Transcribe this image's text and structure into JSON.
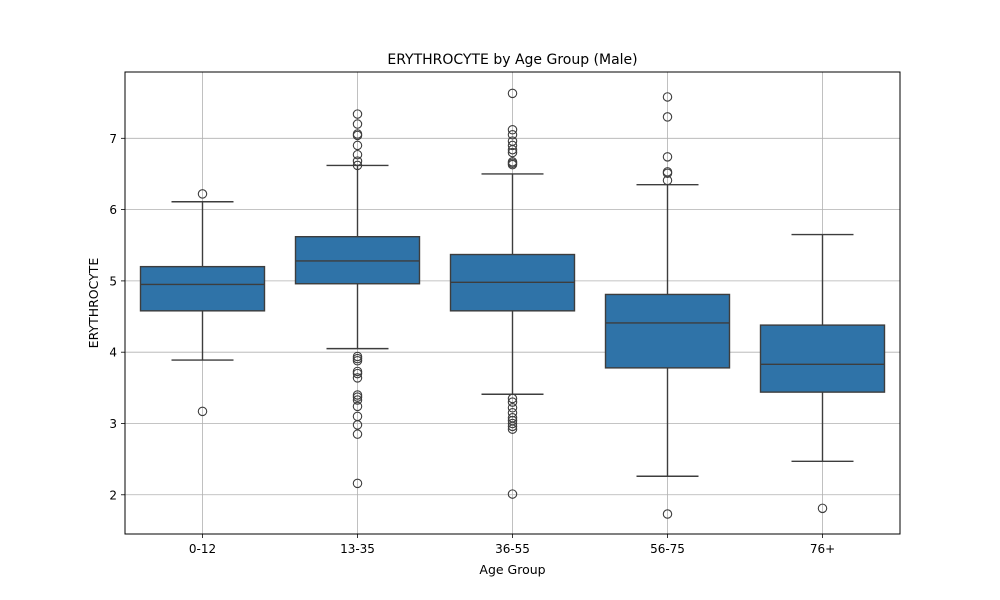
{
  "chart_data": {
    "type": "box",
    "title": "ERYTHROCYTE by Age Group (Male)",
    "xlabel": "Age Group",
    "ylabel": "ERYTHROCYTE",
    "ylim": [
      1.45,
      7.93
    ],
    "yticks": [
      2,
      3,
      4,
      5,
      6,
      7
    ],
    "grid": true,
    "color": "#2f73a8",
    "categories": [
      "0-12",
      "13-35",
      "36-55",
      "56-75",
      "76+"
    ],
    "boxes": [
      {
        "category": "0-12",
        "whisker_low": 3.89,
        "q1": 4.58,
        "median": 4.95,
        "q3": 5.2,
        "whisker_high": 6.11,
        "outliers": [
          6.22,
          3.17
        ]
      },
      {
        "category": "13-35",
        "whisker_low": 4.05,
        "q1": 4.96,
        "median": 5.28,
        "q3": 5.62,
        "whisker_high": 6.62,
        "outliers": [
          7.34,
          7.2,
          7.06,
          7.04,
          6.9,
          6.77,
          6.68,
          6.62,
          3.94,
          3.91,
          3.88,
          3.73,
          3.7,
          3.64,
          3.4,
          3.37,
          3.33,
          3.24,
          3.1,
          2.98,
          2.85,
          2.16
        ]
      },
      {
        "category": "36-55",
        "whisker_low": 3.41,
        "q1": 4.58,
        "median": 4.98,
        "q3": 5.37,
        "whisker_high": 6.5,
        "outliers": [
          7.63,
          7.12,
          7.05,
          6.96,
          6.9,
          6.84,
          6.8,
          6.67,
          6.65,
          6.63,
          3.35,
          3.3,
          3.22,
          3.15,
          3.08,
          3.04,
          3.0,
          2.96,
          2.92,
          2.01
        ]
      },
      {
        "category": "56-75",
        "whisker_low": 2.26,
        "q1": 3.78,
        "median": 4.41,
        "q3": 4.81,
        "whisker_high": 6.35,
        "outliers": [
          7.58,
          7.3,
          6.74,
          6.53,
          6.51,
          6.41,
          1.73
        ]
      },
      {
        "category": "76+",
        "whisker_low": 2.47,
        "q1": 3.44,
        "median": 3.83,
        "q3": 4.38,
        "whisker_high": 5.65,
        "outliers": [
          1.81
        ]
      }
    ]
  }
}
